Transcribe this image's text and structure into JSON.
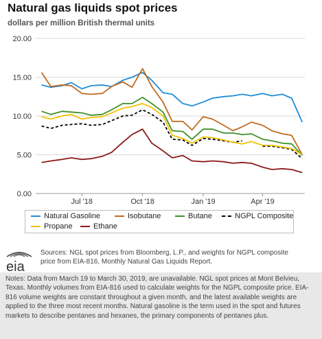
{
  "header": {
    "title": "Natural gas liquids spot prices",
    "subtitle": "dollars per million British thermal units"
  },
  "chart_data": {
    "type": "line",
    "title": "Natural gas liquids spot prices",
    "ylabel": "dollars per million British thermal units",
    "xlabel": "",
    "ylim": [
      0,
      20
    ],
    "yticks": [
      "0.00",
      "5.00",
      "10.00",
      "15.00",
      "20.00"
    ],
    "xticks": [
      "Jul '18",
      "Oct '18",
      "Jan '19",
      "Apr '19"
    ],
    "grid": true,
    "legend_position": "bottom",
    "x": [
      "2018-05-01",
      "2018-05-15",
      "2018-06-01",
      "2018-06-15",
      "2018-07-01",
      "2018-07-15",
      "2018-08-01",
      "2018-08-15",
      "2018-09-01",
      "2018-09-15",
      "2018-10-01",
      "2018-10-15",
      "2018-11-01",
      "2018-11-15",
      "2018-12-01",
      "2018-12-15",
      "2019-01-01",
      "2019-01-15",
      "2019-02-01",
      "2019-02-15",
      "2019-03-01",
      "2019-03-15",
      "2019-04-01",
      "2019-04-15",
      "2019-05-01",
      "2019-05-15",
      "2019-05-31"
    ],
    "series": [
      {
        "name": "Natural Gasoline",
        "color": "#1f8dd6",
        "values": [
          14.0,
          13.7,
          13.9,
          14.3,
          13.5,
          13.9,
          14.0,
          13.8,
          14.6,
          15.0,
          15.6,
          14.6,
          13.0,
          12.8,
          11.6,
          11.3,
          11.8,
          12.3,
          12.5,
          12.6,
          12.8,
          12.6,
          12.9,
          12.6,
          12.8,
          12.3,
          9.2
        ]
      },
      {
        "name": "Isobutane",
        "color": "#c06a1e",
        "values": [
          15.6,
          13.8,
          14.0,
          13.9,
          12.9,
          12.8,
          12.9,
          13.8,
          14.4,
          13.7,
          16.1,
          13.8,
          11.8,
          9.3,
          9.3,
          8.2,
          9.9,
          9.6,
          8.8,
          8.1,
          8.6,
          9.2,
          8.8,
          8.1,
          7.7,
          7.5,
          5.0
        ]
      },
      {
        "name": "Butane",
        "color": "#3f8f2a",
        "values": [
          10.6,
          10.2,
          10.6,
          10.5,
          10.4,
          10.1,
          10.2,
          10.8,
          11.6,
          11.6,
          12.4,
          11.6,
          10.5,
          8.1,
          8.0,
          7.0,
          8.3,
          8.3,
          7.8,
          7.8,
          7.6,
          7.7,
          7.0,
          6.8,
          6.5,
          6.4,
          4.9
        ]
      },
      {
        "name": "NGPL Composite",
        "color": "#000000",
        "dash": true,
        "values": [
          8.7,
          8.4,
          8.8,
          8.9,
          9.0,
          8.8,
          8.9,
          9.4,
          10.0,
          10.1,
          10.8,
          10.2,
          9.2,
          7.0,
          6.9,
          6.2,
          7.1,
          7.0,
          6.8,
          6.6,
          6.8,
          null,
          6.1,
          6.1,
          5.9,
          5.7,
          4.5
        ]
      },
      {
        "name": "Propane",
        "color": "#f2c200",
        "values": [
          9.9,
          9.6,
          10.0,
          10.2,
          9.6,
          9.8,
          9.9,
          10.4,
          11.0,
          11.2,
          11.6,
          11.1,
          10.0,
          7.5,
          7.1,
          6.5,
          7.3,
          7.2,
          6.9,
          6.6,
          6.4,
          6.7,
          6.2,
          6.2,
          6.0,
          5.8,
          5.0
        ]
      },
      {
        "name": "Ethane",
        "color": "#8b1a1a",
        "values": [
          4.0,
          4.2,
          4.4,
          4.6,
          4.4,
          4.5,
          4.8,
          5.3,
          6.6,
          7.6,
          8.3,
          6.5,
          5.5,
          4.6,
          4.9,
          4.2,
          4.1,
          4.2,
          4.1,
          3.9,
          4.0,
          3.9,
          3.4,
          3.1,
          3.2,
          3.1,
          2.7
        ]
      }
    ]
  },
  "sources": "Sources: NGL spot prices from Bloomberg, L.P., and weights for NGPL composite price from EIA-816, Monthly Natural Gas Liquids Report.",
  "notes": "Notes: Data from March 19 to March 30, 2019, are unavailable. NGL spot prices at Mont Belvieu, Texas. Monthly volumes from EIA-816 used to calculate weights for the NGPL composite price. EIA-816 volume weights are constant throughout a given month, and the latest available weights are applied to the three most recent months. Natural gasoline is the term used in the spot and futures markets to describe pentanes and hexanes, the primary components of pentanes plus.",
  "logo_text": "eia"
}
